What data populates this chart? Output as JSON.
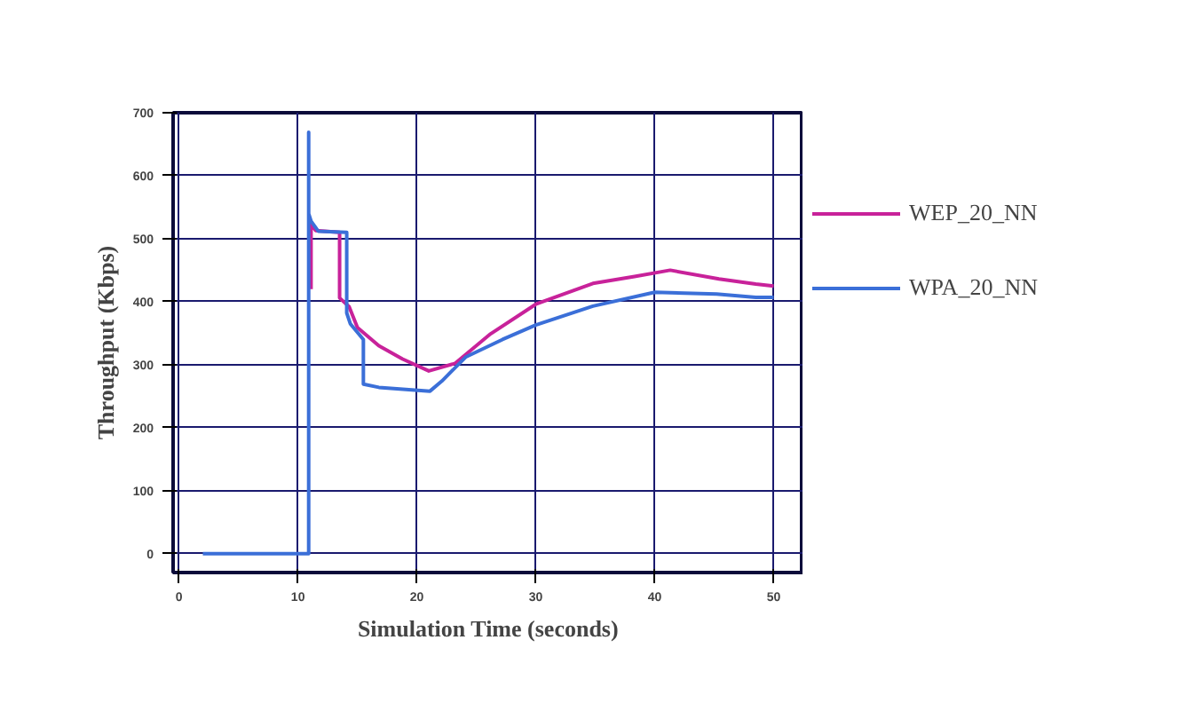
{
  "chart_data": {
    "type": "line",
    "xlabel": "Simulation Time (seconds)",
    "ylabel": "Throughput (Kbps)",
    "xlim": [
      -0.5,
      52.5
    ],
    "ylim": [
      -30,
      700
    ],
    "xticks": [
      0,
      10,
      20,
      30,
      40,
      50
    ],
    "yticks": [
      0,
      100,
      200,
      300,
      400,
      500,
      600,
      700
    ],
    "grid": true,
    "legend": "right",
    "marker": "none",
    "line_style": "solid",
    "series": [
      {
        "name": "WEP_20_NN",
        "color": "#c8229a",
        "x": [
          11.1,
          11.1,
          11.5,
          13.5,
          13.5,
          14.3,
          15,
          16.8,
          18.8,
          21,
          23.2,
          26.2,
          30,
          34.8,
          38.3,
          41.3,
          45.4,
          48.5,
          50
        ],
        "values": [
          420,
          523,
          513,
          510,
          406,
          392,
          359,
          330,
          309,
          290,
          302,
          349,
          396,
          429,
          440,
          450,
          436,
          428,
          425
        ]
      },
      {
        "name": "WPA_20_NN",
        "color": "#3b6fd8",
        "x": [
          2,
          10.9,
          10.9,
          10.9,
          11.1,
          11.7,
          14.1,
          14.1,
          14.4,
          15.5,
          15.5,
          16.8,
          21.1,
          22.1,
          24.1,
          27.2,
          30,
          34.8,
          40,
          45.2,
          48.5,
          50
        ],
        "values": [
          0,
          0,
          669,
          540,
          528,
          512,
          510,
          382,
          365,
          340,
          269,
          264,
          258,
          274,
          312,
          340,
          363,
          393,
          415,
          412,
          407,
          407
        ]
      }
    ]
  }
}
